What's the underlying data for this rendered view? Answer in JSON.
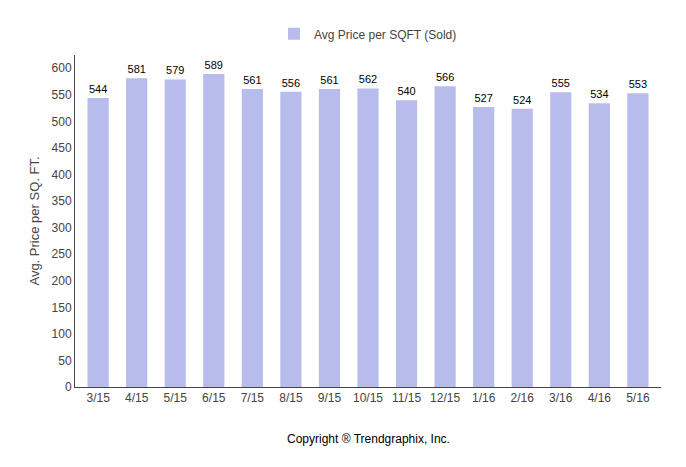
{
  "chart_data": {
    "type": "bar",
    "categories": [
      "3/15",
      "4/15",
      "5/15",
      "6/15",
      "7/15",
      "8/15",
      "9/15",
      "10/15",
      "11/15",
      "12/15",
      "1/16",
      "2/16",
      "3/16",
      "4/16",
      "5/16"
    ],
    "series": [
      {
        "name": "Avg Price per SQFT (Sold)",
        "color": "#b8bcec",
        "values": [
          544,
          581,
          579,
          589,
          561,
          556,
          561,
          562,
          540,
          566,
          527,
          524,
          555,
          534,
          553
        ]
      }
    ],
    "ylabel": "Avg. Price per SQ. FT.",
    "annotations": [
      "Copyright ® Trendgraphix, Inc."
    ],
    "ylim": [
      0,
      625
    ],
    "yticks": [
      0,
      50,
      100,
      150,
      200,
      250,
      300,
      350,
      400,
      450,
      500,
      550,
      600
    ],
    "grid": false,
    "legend": "top",
    "data_labels": true
  }
}
